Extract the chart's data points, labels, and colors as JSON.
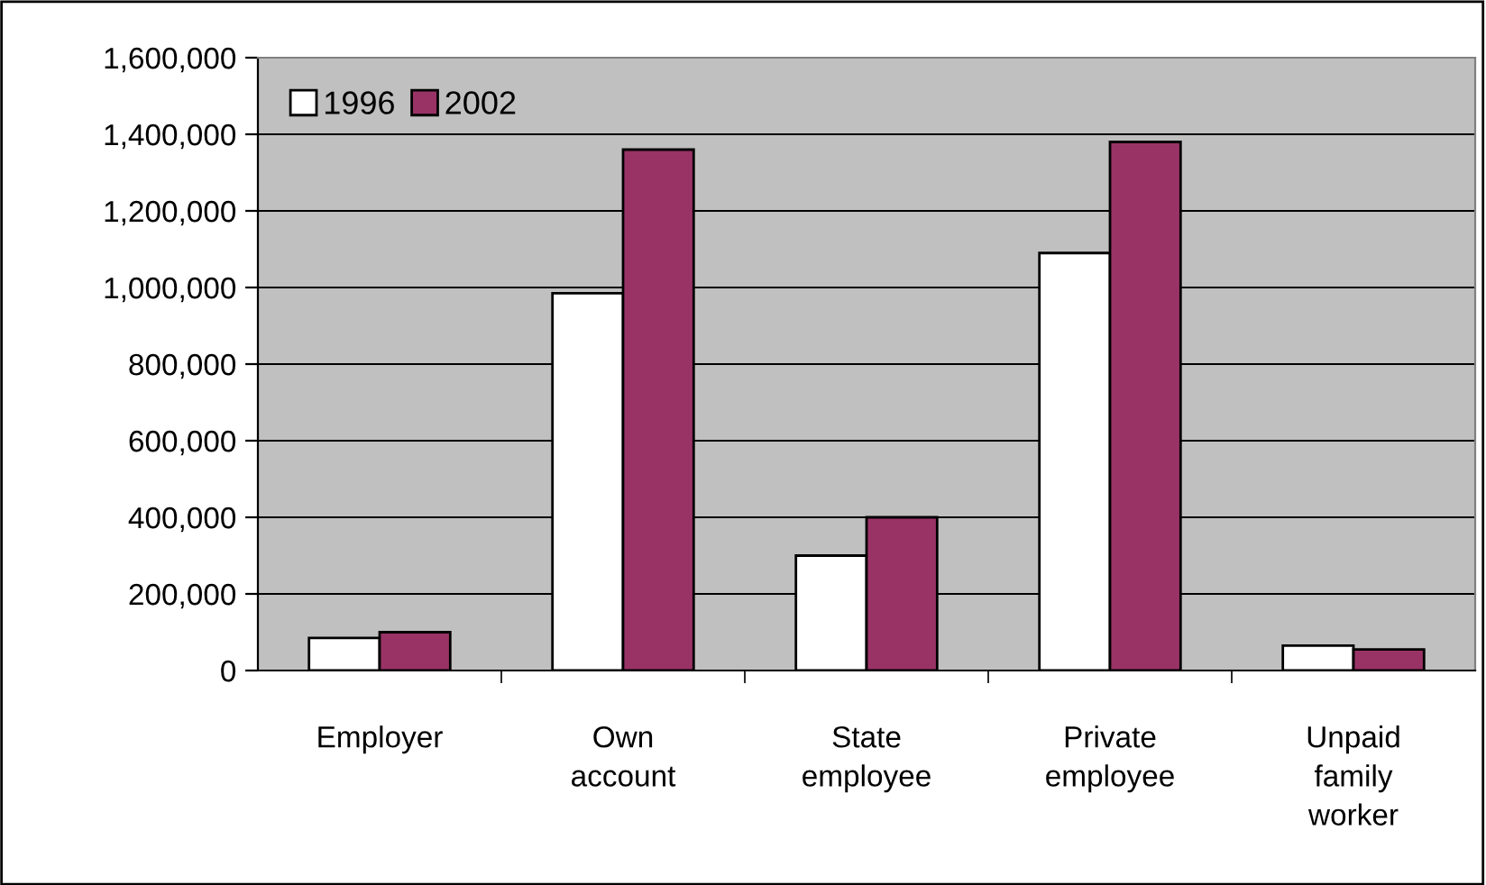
{
  "chart_data": {
    "type": "bar",
    "categories": [
      "Employer",
      "Own\naccount",
      "State\nemployee",
      "Private\nemployee",
      "Unpaid\nfamily\nworker"
    ],
    "series": [
      {
        "name": "1996",
        "color": "#ffffff",
        "values": [
          85000,
          985000,
          300000,
          1090000,
          65000
        ]
      },
      {
        "name": "2002",
        "color": "#993366",
        "values": [
          100000,
          1360000,
          400000,
          1380000,
          55000
        ]
      }
    ],
    "ylim": [
      0,
      1600000
    ],
    "yticks": [
      {
        "value": 0,
        "label": "0"
      },
      {
        "value": 200000,
        "label": "200,000"
      },
      {
        "value": 400000,
        "label": "400,000"
      },
      {
        "value": 600000,
        "label": "600,000"
      },
      {
        "value": 800000,
        "label": "800,000"
      },
      {
        "value": 1000000,
        "label": "1,000,000"
      },
      {
        "value": 1200000,
        "label": "1,200,000"
      },
      {
        "value": 1400000,
        "label": "1,400,000"
      },
      {
        "value": 1600000,
        "label": "1,600,000"
      }
    ],
    "grid": "y",
    "legend": "top left"
  }
}
